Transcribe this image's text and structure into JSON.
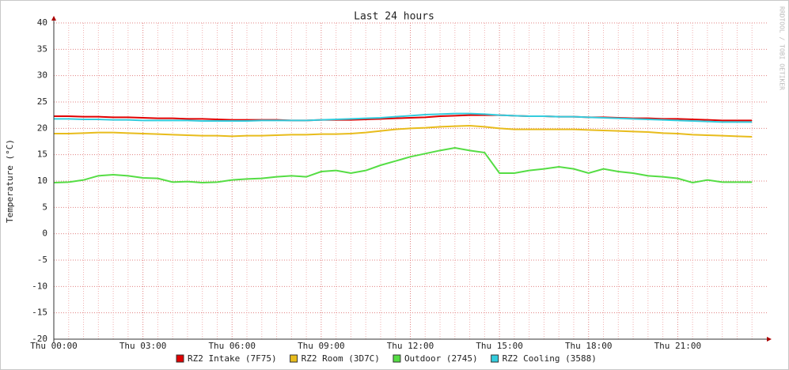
{
  "chart_data": {
    "type": "line",
    "title": "Last 24 hours",
    "ylabel": "Temperature (°C)",
    "watermark": "RRDTOOL / TOBI OETIKER",
    "x": [
      "Thu 00:00",
      "Thu 00:30",
      "Thu 01:00",
      "Thu 01:30",
      "Thu 02:00",
      "Thu 02:30",
      "Thu 03:00",
      "Thu 03:30",
      "Thu 04:00",
      "Thu 04:30",
      "Thu 05:00",
      "Thu 05:30",
      "Thu 06:00",
      "Thu 06:30",
      "Thu 07:00",
      "Thu 07:30",
      "Thu 08:00",
      "Thu 08:30",
      "Thu 09:00",
      "Thu 09:30",
      "Thu 10:00",
      "Thu 10:30",
      "Thu 11:00",
      "Thu 11:30",
      "Thu 12:00",
      "Thu 12:30",
      "Thu 13:00",
      "Thu 13:30",
      "Thu 14:00",
      "Thu 14:30",
      "Thu 15:00",
      "Thu 15:30",
      "Thu 16:00",
      "Thu 16:30",
      "Thu 17:00",
      "Thu 17:30",
      "Thu 18:00",
      "Thu 18:30",
      "Thu 19:00",
      "Thu 19:30",
      "Thu 20:00",
      "Thu 20:30",
      "Thu 21:00",
      "Thu 21:30",
      "Thu 22:00",
      "Thu 22:30",
      "Thu 23:00",
      "Thu 23:30"
    ],
    "series": [
      {
        "name": "RZ2 Intake (7F75)",
        "color": "#e00000",
        "values": [
          22.3,
          22.3,
          22.2,
          22.2,
          22.1,
          22.1,
          22.0,
          21.9,
          21.9,
          21.8,
          21.8,
          21.7,
          21.6,
          21.6,
          21.6,
          21.6,
          21.5,
          21.5,
          21.6,
          21.6,
          21.6,
          21.7,
          21.8,
          21.9,
          22.0,
          22.1,
          22.3,
          22.4,
          22.5,
          22.5,
          22.5,
          22.4,
          22.3,
          22.3,
          22.2,
          22.2,
          22.1,
          22.1,
          22.0,
          21.9,
          21.9,
          21.8,
          21.8,
          21.7,
          21.6,
          21.5,
          21.5,
          21.5
        ]
      },
      {
        "name": "RZ2 Room (3D7C)",
        "color": "#e8bc1c",
        "values": [
          19.0,
          19.0,
          19.1,
          19.2,
          19.2,
          19.1,
          19.0,
          18.9,
          18.8,
          18.7,
          18.6,
          18.6,
          18.5,
          18.6,
          18.6,
          18.7,
          18.8,
          18.8,
          18.9,
          18.9,
          19.0,
          19.2,
          19.5,
          19.8,
          20.0,
          20.1,
          20.3,
          20.4,
          20.5,
          20.3,
          20.0,
          19.8,
          19.8,
          19.8,
          19.8,
          19.8,
          19.7,
          19.6,
          19.5,
          19.4,
          19.3,
          19.1,
          19.0,
          18.8,
          18.7,
          18.6,
          18.5,
          18.4
        ]
      },
      {
        "name": "Outdoor (2745)",
        "color": "#55dd44",
        "values": [
          9.7,
          9.8,
          10.2,
          11.0,
          11.2,
          11.0,
          10.6,
          10.5,
          9.8,
          9.9,
          9.7,
          9.8,
          10.2,
          10.4,
          10.5,
          10.8,
          11.0,
          10.8,
          11.8,
          12.0,
          11.5,
          12.0,
          13.0,
          13.8,
          14.6,
          15.2,
          15.8,
          16.3,
          15.8,
          15.4,
          11.5,
          11.5,
          12.0,
          12.3,
          12.7,
          12.3,
          11.5,
          12.3,
          11.8,
          11.5,
          11.0,
          10.8,
          10.5,
          9.7,
          10.2,
          9.8,
          9.8,
          9.8
        ]
      },
      {
        "name": "RZ2 Cooling (3588)",
        "color": "#33ccdd",
        "values": [
          21.8,
          21.8,
          21.7,
          21.7,
          21.6,
          21.6,
          21.5,
          21.5,
          21.5,
          21.5,
          21.4,
          21.4,
          21.4,
          21.4,
          21.5,
          21.5,
          21.5,
          21.5,
          21.6,
          21.7,
          21.8,
          21.9,
          22.0,
          22.2,
          22.4,
          22.6,
          22.7,
          22.8,
          22.8,
          22.7,
          22.5,
          22.4,
          22.3,
          22.3,
          22.2,
          22.2,
          22.1,
          22.0,
          21.9,
          21.8,
          21.7,
          21.6,
          21.5,
          21.4,
          21.3,
          21.2,
          21.2,
          21.2
        ]
      }
    ],
    "ylim": [
      -20,
      40
    ],
    "yticks": [
      -20,
      -15,
      -10,
      -5,
      0,
      5,
      10,
      15,
      20,
      25,
      30,
      35,
      40
    ],
    "grid": true,
    "legend": "bottom"
  }
}
